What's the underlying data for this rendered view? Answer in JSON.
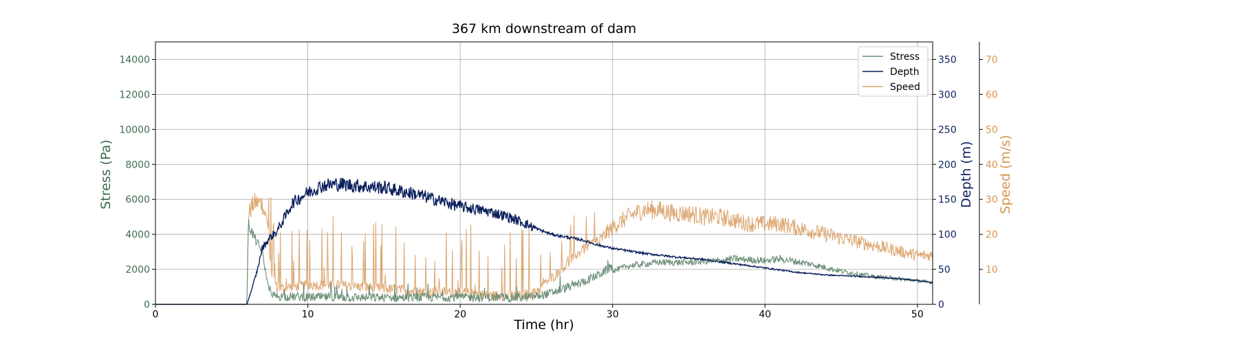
{
  "chart_data": {
    "type": "line",
    "title": "367 km downstream of dam",
    "xlabel": "Time (hr)",
    "xlim": [
      0,
      51
    ],
    "xticks": [
      0,
      10,
      20,
      30,
      40,
      50
    ],
    "grid": true,
    "legend_position": "top-right",
    "axes": {
      "stress": {
        "label": "Stress (Pa)",
        "ylim": [
          0,
          15000
        ],
        "ticks": [
          0,
          2000,
          4000,
          6000,
          8000,
          10000,
          12000,
          14000
        ],
        "color": "#3d6b4f"
      },
      "depth": {
        "label": "Depth (m)",
        "ylim": [
          0,
          375
        ],
        "ticks": [
          0,
          50,
          100,
          150,
          200,
          250,
          300,
          350
        ],
        "color": "#0b1f5c"
      },
      "speed": {
        "label": "Speed (m/s)",
        "ylim": [
          0,
          75
        ],
        "ticks": [
          10,
          20,
          30,
          40,
          50,
          60,
          70
        ],
        "color": "#d9954b"
      }
    },
    "series": [
      {
        "name": "Stress",
        "axis": "stress",
        "color": "#6b8f78",
        "x": [
          0,
          6,
          6.1,
          6.5,
          7,
          7.3,
          7.6,
          8,
          10,
          15,
          20,
          24,
          25,
          26,
          27,
          28,
          29,
          30,
          31,
          33,
          35,
          37,
          38,
          40,
          41,
          43,
          45,
          47,
          49,
          51
        ],
        "y": [
          0,
          0,
          4600,
          3800,
          3000,
          1500,
          250,
          200,
          150,
          120,
          150,
          120,
          200,
          400,
          700,
          1000,
          1400,
          1900,
          2200,
          2400,
          2400,
          2500,
          2600,
          2500,
          2600,
          2300,
          1900,
          1600,
          1450,
          1250
        ]
      },
      {
        "name": "Depth",
        "axis": "depth",
        "color": "#0b1f5c",
        "x": [
          0,
          6,
          6.3,
          6.7,
          7,
          7.5,
          8,
          8.5,
          9,
          10,
          11,
          12,
          13,
          14,
          15,
          16,
          17,
          18,
          19,
          20,
          21,
          22,
          23,
          24,
          25,
          26,
          27,
          28,
          29,
          30,
          32,
          34,
          36,
          38,
          40,
          42,
          44,
          46,
          48,
          50,
          51
        ],
        "y": [
          0,
          0,
          20,
          50,
          80,
          95,
          105,
          125,
          145,
          160,
          170,
          172,
          170,
          168,
          167,
          162,
          158,
          152,
          146,
          140,
          136,
          132,
          126,
          118,
          108,
          100,
          96,
          92,
          85,
          80,
          73,
          68,
          64,
          58,
          52,
          46,
          42,
          40,
          38,
          34,
          31
        ]
      },
      {
        "name": "Speed",
        "axis": "speed",
        "color": "#d9a066",
        "x": [
          0,
          6,
          6.1,
          6.5,
          7,
          7.3,
          7.6,
          8,
          10,
          12,
          15,
          18,
          20,
          22,
          24,
          25,
          26,
          27,
          28,
          29,
          29.5,
          30,
          31,
          32,
          33,
          34,
          35,
          36,
          37,
          38,
          39,
          40,
          41,
          42,
          43,
          44,
          45,
          46,
          47,
          48,
          49,
          50,
          51
        ],
        "y": [
          0,
          0,
          26,
          29,
          29,
          24,
          8,
          3,
          4,
          4,
          3,
          2,
          2,
          1,
          1,
          2,
          6,
          10,
          14,
          17,
          20,
          22,
          25,
          27,
          27,
          26,
          26,
          25,
          25,
          24,
          23,
          23,
          23,
          22,
          21,
          20,
          19,
          18,
          17,
          16,
          15,
          14,
          14
        ]
      }
    ],
    "legend": [
      "Stress",
      "Depth",
      "Speed"
    ]
  }
}
